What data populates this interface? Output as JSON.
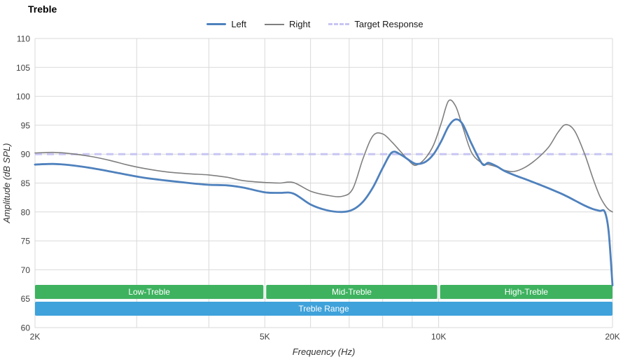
{
  "page": {
    "title": "Treble"
  },
  "legend": [
    {
      "label": "Left",
      "color": "#4f81bd",
      "style": "solid-thick"
    },
    {
      "label": "Right",
      "color": "#7f7f7f",
      "style": "solid-thin"
    },
    {
      "label": "Target Response",
      "color": "#c8c5f3",
      "style": "dashed"
    }
  ],
  "axes": {
    "x_label": "Frequency (Hz)",
    "y_label": "Amplitude (dB SPL)",
    "x_ticks": [
      {
        "value": 2000,
        "label": "2K"
      },
      {
        "value": 5000,
        "label": "5K"
      },
      {
        "value": 10000,
        "label": "10K"
      },
      {
        "value": 20000,
        "label": "20K"
      }
    ],
    "x_gridlines": [
      2000,
      3000,
      4000,
      5000,
      6000,
      7000,
      8000,
      9000,
      10000,
      20000
    ],
    "y_ticks": [
      60,
      65,
      70,
      75,
      80,
      85,
      90,
      95,
      100,
      105,
      110
    ]
  },
  "colors": {
    "grid": "#d9d9d9",
    "tick_text": "#404040",
    "band_green": "#3eb25f",
    "band_blue": "#3fa2da",
    "target": "#c8c5f3"
  },
  "chart_data": {
    "type": "line",
    "title": "Treble",
    "xlabel": "Frequency (Hz)",
    "ylabel": "Amplitude (dB SPL)",
    "x_scale": "log",
    "xlim": [
      2000,
      20000
    ],
    "ylim": [
      60,
      110
    ],
    "grid": true,
    "legend_position": "top-center",
    "target_response_db": 90,
    "x": [
      2000,
      2150,
      2300,
      2500,
      2700,
      2900,
      3100,
      3400,
      3700,
      4000,
      4300,
      4600,
      5000,
      5300,
      5600,
      6000,
      6400,
      6800,
      7100,
      7400,
      7700,
      8000,
      8300,
      8600,
      9000,
      9200,
      9500,
      9800,
      10100,
      10400,
      10700,
      11000,
      11400,
      11900,
      12200,
      12600,
      13000,
      13500,
      14100,
      14800,
      15500,
      16100,
      16600,
      17200,
      17900,
      18500,
      19000,
      19400,
      19700,
      20000
    ],
    "series": [
      {
        "name": "Left",
        "color": "#4f81bd",
        "width": 2.8,
        "values": [
          88.2,
          88.3,
          88.1,
          87.6,
          87.0,
          86.4,
          85.9,
          85.4,
          85.0,
          84.7,
          84.6,
          84.2,
          83.4,
          83.3,
          83.2,
          81.3,
          80.3,
          80.0,
          80.4,
          81.8,
          84.3,
          87.6,
          90.3,
          89.9,
          88.6,
          88.3,
          88.7,
          90.0,
          92.2,
          94.8,
          96.0,
          95.2,
          91.8,
          88.3,
          88.5,
          87.9,
          87.1,
          86.4,
          85.7,
          84.9,
          84.1,
          83.4,
          82.8,
          82.0,
          81.1,
          80.5,
          80.2,
          80.0,
          76.5,
          67.3
        ]
      },
      {
        "name": "Right",
        "color": "#7f7f7f",
        "width": 1.6,
        "values": [
          90.2,
          90.3,
          90.1,
          89.6,
          88.9,
          88.1,
          87.5,
          86.9,
          86.6,
          86.4,
          86.0,
          85.4,
          85.1,
          85.0,
          85.1,
          83.6,
          82.9,
          82.7,
          84.0,
          89.3,
          93.2,
          93.5,
          92.1,
          90.4,
          88.3,
          88.2,
          89.4,
          91.6,
          95.3,
          99.2,
          98.3,
          94.8,
          90.3,
          88.4,
          88.2,
          87.8,
          87.2,
          87.0,
          87.7,
          89.2,
          91.2,
          93.8,
          95.1,
          94.0,
          90.0,
          85.8,
          82.8,
          81.2,
          80.4,
          80.0
        ]
      }
    ],
    "bands": [
      {
        "label": "Low-Treble",
        "from": 2000,
        "to": 5000,
        "row": "top",
        "color": "#3eb25f"
      },
      {
        "label": "Mid-Treble",
        "from": 5000,
        "to": 10000,
        "row": "top",
        "color": "#3eb25f"
      },
      {
        "label": "High-Treble",
        "from": 10000,
        "to": 20000,
        "row": "top",
        "color": "#3eb25f"
      },
      {
        "label": "Treble Range",
        "from": 2000,
        "to": 20000,
        "row": "bottom",
        "color": "#3fa2da"
      }
    ]
  }
}
